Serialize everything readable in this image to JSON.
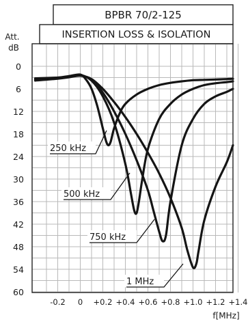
{
  "chart_data": {
    "type": "line",
    "title": "BPBR 70/2-125",
    "subtitle": "INSERTION LOSS & ISOLATION",
    "ylabel_line1": "Att.",
    "ylabel_line2": "dB",
    "xlabel": "f[MHz]",
    "xlim": [
      -0.4,
      1.4
    ],
    "ylim": [
      0,
      60
    ],
    "y_inverted": true,
    "x_ticks": [
      -0.2,
      0,
      0.2,
      0.4,
      0.6,
      0.8,
      1.0,
      1.2,
      1.4
    ],
    "x_tick_labels": [
      "-0.2",
      "0",
      "+0.2",
      "+0.4",
      "+0.6",
      "+0.8",
      "+1.0",
      "+1.2",
      "+1.4"
    ],
    "y_ticks": [
      0,
      6,
      12,
      18,
      24,
      30,
      36,
      42,
      48,
      54,
      60
    ],
    "y_tick_labels": [
      "0",
      "6",
      "12",
      "18",
      "24",
      "30",
      "36",
      "42",
      "48",
      "54",
      "60"
    ],
    "grid": true,
    "series": [
      {
        "name": "250 kHz",
        "x": [
          -0.4,
          -0.2,
          -0.1,
          0.0,
          0.05,
          0.1,
          0.15,
          0.2,
          0.23,
          0.25,
          0.27,
          0.3,
          0.35,
          0.4,
          0.5,
          0.6,
          0.7,
          0.8,
          0.9,
          1.0,
          1.1,
          1.2,
          1.3,
          1.4
        ],
        "y": [
          3.2,
          3.0,
          2.6,
          2.2,
          3.5,
          6.0,
          10.5,
          16.5,
          20.0,
          21.0,
          20.0,
          16.5,
          12.5,
          10.0,
          7.5,
          6.0,
          5.0,
          4.4,
          4.0,
          3.7,
          3.6,
          3.5,
          3.4,
          3.3
        ]
      },
      {
        "name": "500 kHz",
        "x": [
          -0.4,
          -0.2,
          -0.1,
          0.0,
          0.1,
          0.2,
          0.3,
          0.4,
          0.45,
          0.48,
          0.5,
          0.52,
          0.55,
          0.6,
          0.7,
          0.8,
          0.9,
          1.0,
          1.1,
          1.2,
          1.3,
          1.4
        ],
        "y": [
          3.4,
          3.1,
          2.7,
          2.3,
          3.8,
          8.0,
          15.0,
          26.0,
          34.0,
          38.5,
          39.0,
          36.0,
          30.0,
          22.0,
          14.0,
          10.0,
          7.5,
          6.0,
          5.0,
          4.5,
          4.2,
          4.0
        ]
      },
      {
        "name": "750 kHz",
        "x": [
          -0.4,
          -0.2,
          -0.1,
          0.0,
          0.1,
          0.2,
          0.3,
          0.4,
          0.5,
          0.6,
          0.65,
          0.7,
          0.73,
          0.76,
          0.8,
          0.9,
          1.0,
          1.1,
          1.2,
          1.3,
          1.4
        ],
        "y": [
          3.6,
          3.2,
          2.8,
          2.4,
          3.6,
          7.0,
          12.0,
          18.0,
          25.0,
          33.0,
          38.5,
          44.0,
          46.5,
          45.0,
          36.0,
          21.0,
          14.0,
          10.0,
          8.0,
          6.8,
          6.0
        ]
      },
      {
        "name": "1 MHz",
        "x": [
          -0.4,
          -0.2,
          -0.1,
          0.0,
          0.1,
          0.2,
          0.3,
          0.4,
          0.5,
          0.6,
          0.7,
          0.8,
          0.9,
          0.95,
          1.0,
          1.03,
          1.05,
          1.1,
          1.2,
          1.3,
          1.4
        ],
        "y": [
          3.8,
          3.3,
          2.9,
          2.5,
          3.4,
          6.0,
          9.5,
          13.5,
          18.0,
          23.0,
          28.5,
          35.0,
          43.0,
          49.0,
          53.5,
          52.5,
          49.0,
          41.0,
          32.0,
          25.5,
          21.0
        ]
      }
    ],
    "annotations": [
      {
        "text": "250 kHz",
        "series": "250 kHz"
      },
      {
        "text": "500 kHz",
        "series": "500 kHz"
      },
      {
        "text": "750 kHz",
        "series": "750 kHz"
      },
      {
        "text": "1 MHz",
        "series": "1 MHz"
      }
    ]
  }
}
